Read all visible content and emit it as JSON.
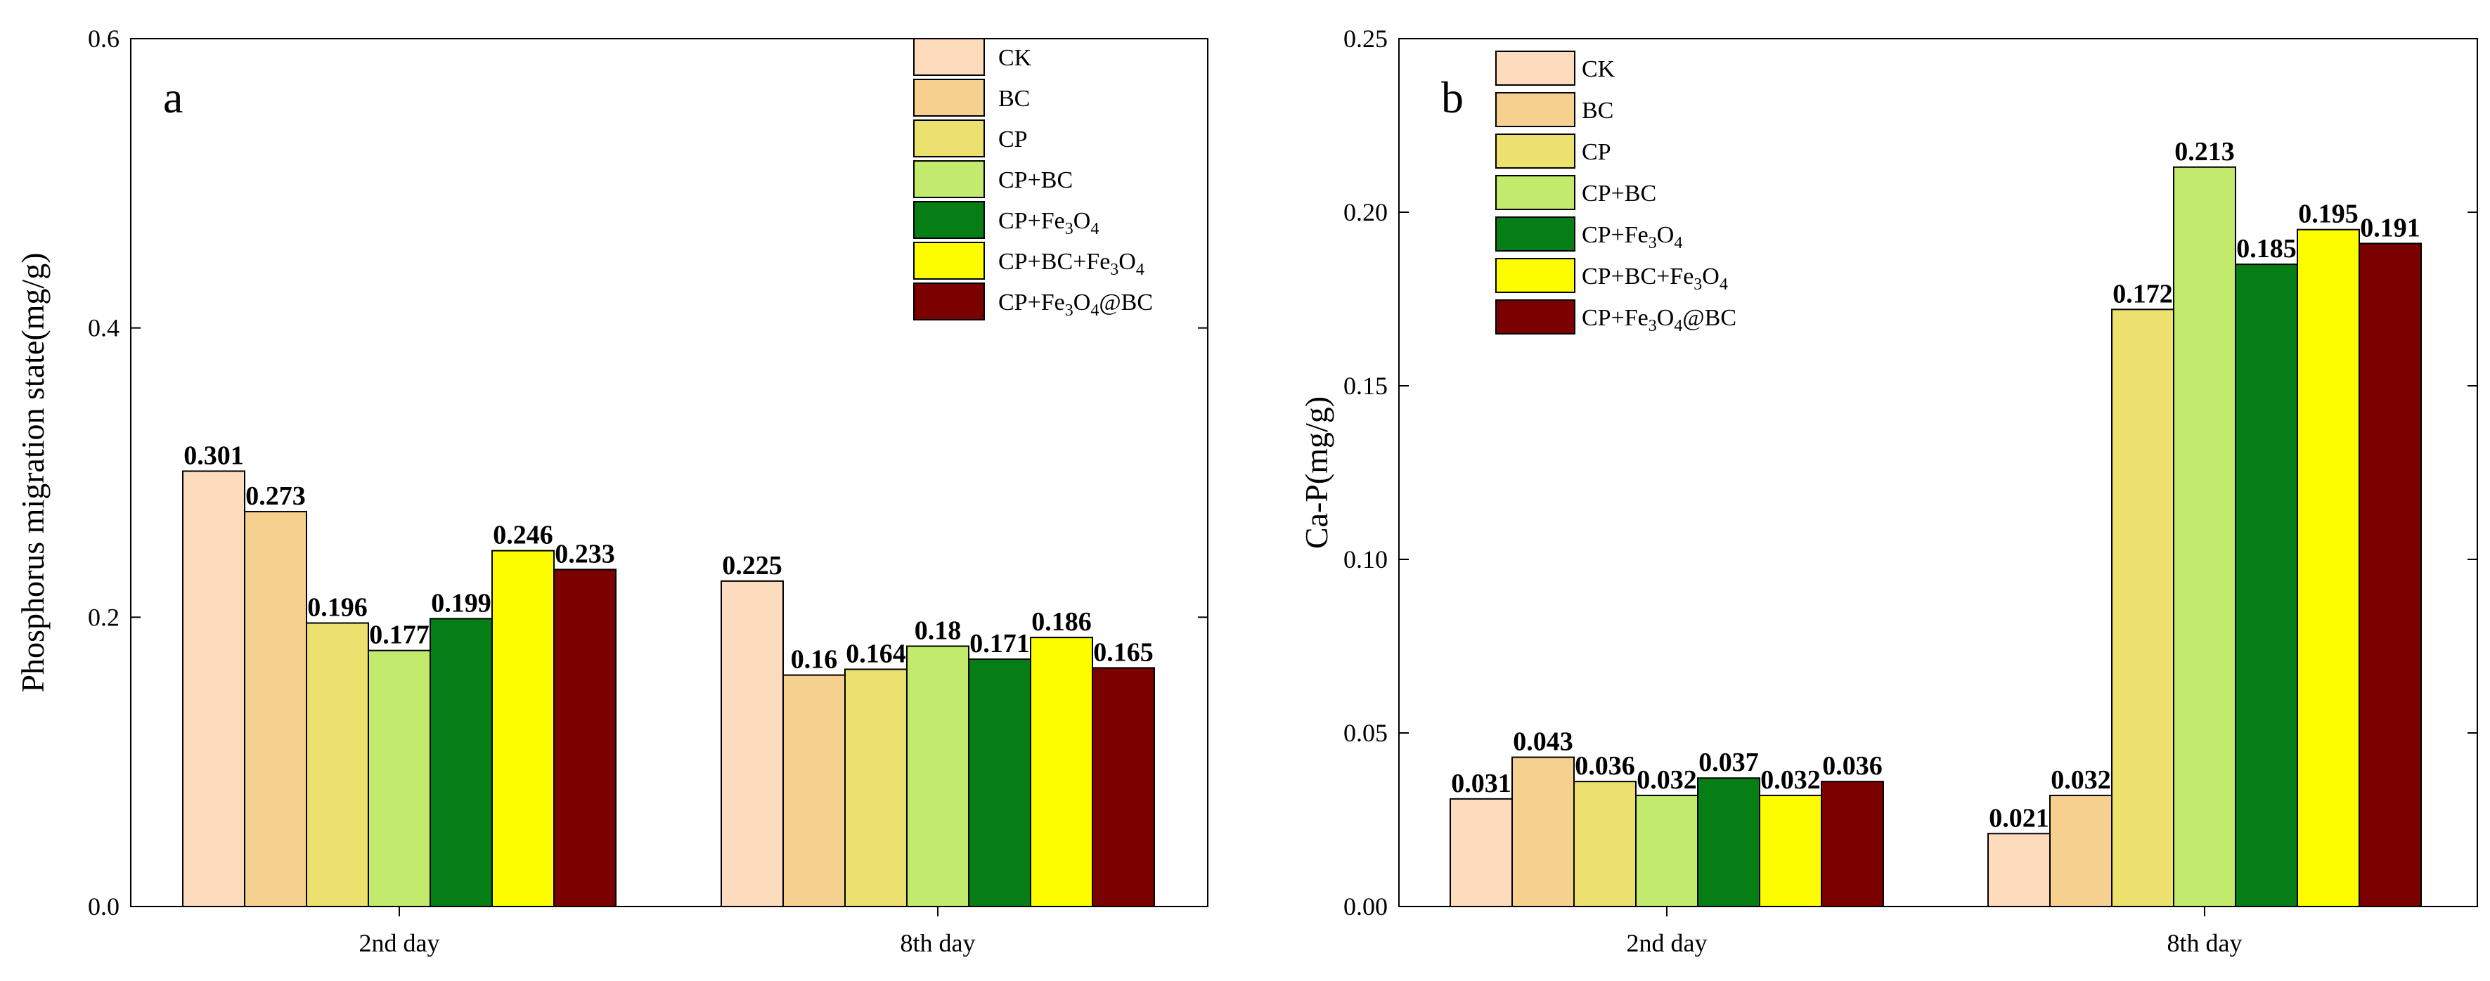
{
  "chart_data": [
    {
      "type": "bar",
      "panel": "a",
      "ylabel": "Phosphorus migration state(mg/g)",
      "xlabel": "",
      "ylim": [
        0,
        0.6
      ],
      "yticks": [
        "0.0",
        "0.2",
        "0.4",
        "0.6"
      ],
      "categories": [
        "2nd day",
        "8th day"
      ],
      "legend_position": "top-right",
      "series": [
        {
          "name": "CK",
          "values": [
            0.301,
            0.225
          ],
          "labels": [
            "0.301",
            "0.225"
          ]
        },
        {
          "name": "BC",
          "values": [
            0.273,
            0.16
          ],
          "labels": [
            "0.273",
            "0.16"
          ]
        },
        {
          "name": "CP",
          "values": [
            0.196,
            0.164
          ],
          "labels": [
            "0.196",
            "0.164"
          ]
        },
        {
          "name": "CP+BC",
          "values": [
            0.177,
            0.18
          ],
          "labels": [
            "0.177",
            "0.18"
          ]
        },
        {
          "name": "CP+Fe3O4",
          "values": [
            0.199,
            0.171
          ],
          "labels": [
            "0.199",
            "0.171"
          ]
        },
        {
          "name": "CP+BC+Fe3O4",
          "values": [
            0.246,
            0.186
          ],
          "labels": [
            "0.246",
            "0.186"
          ]
        },
        {
          "name": "CP+Fe3O4@BC",
          "values": [
            0.233,
            0.165
          ],
          "labels": [
            "0.233",
            "0.165"
          ]
        }
      ]
    },
    {
      "type": "bar",
      "panel": "b",
      "ylabel": "Ca-P(mg/g)",
      "xlabel": "",
      "ylim": [
        0,
        0.25
      ],
      "yticks": [
        "0.00",
        "0.05",
        "0.10",
        "0.15",
        "0.20",
        "0.25"
      ],
      "categories": [
        "2nd day",
        "8th day"
      ],
      "legend_position": "top-left",
      "series": [
        {
          "name": "CK",
          "values": [
            0.031,
            0.021
          ],
          "labels": [
            "0.031",
            "0.021"
          ]
        },
        {
          "name": "BC",
          "values": [
            0.043,
            0.032
          ],
          "labels": [
            "0.043",
            "0.032"
          ]
        },
        {
          "name": "CP",
          "values": [
            0.036,
            0.172
          ],
          "labels": [
            "0.036",
            "0.172"
          ]
        },
        {
          "name": "CP+BC",
          "values": [
            0.032,
            0.213
          ],
          "labels": [
            "0.032",
            "0.213"
          ]
        },
        {
          "name": "CP+Fe3O4",
          "values": [
            0.037,
            0.185
          ],
          "labels": [
            "0.037",
            "0.185"
          ]
        },
        {
          "name": "CP+BC+Fe3O4",
          "values": [
            0.032,
            0.195
          ],
          "labels": [
            "0.032",
            "0.195"
          ]
        },
        {
          "name": "CP+Fe3O4@BC",
          "values": [
            0.036,
            0.191
          ],
          "labels": [
            "0.036",
            "0.191"
          ]
        }
      ]
    }
  ],
  "legend": {
    "entries": [
      {
        "key": "CK",
        "text": "CK",
        "sub": "",
        "tail": ""
      },
      {
        "key": "BC",
        "text": "BC",
        "sub": "",
        "tail": ""
      },
      {
        "key": "CP",
        "text": "CP",
        "sub": "",
        "tail": ""
      },
      {
        "key": "CP+BC",
        "text": "CP+BC",
        "sub": "",
        "tail": ""
      },
      {
        "key": "CP+Fe3O4",
        "text": "CP+Fe",
        "sub": "3",
        "mid": "O",
        "sub2": "4",
        "tail": ""
      },
      {
        "key": "CP+BC+Fe3O4",
        "text": "CP+BC+Fe",
        "sub": "3",
        "mid": "O",
        "sub2": "4",
        "tail": ""
      },
      {
        "key": "CP+Fe3O4@BC",
        "text": "CP+Fe",
        "sub": "3",
        "mid": "O",
        "sub2": "4",
        "tail": "@BC"
      }
    ]
  },
  "colors": {
    "CK": "#fddcbd",
    "BC": "#f5d08f",
    "CP": "#ece06e",
    "CP+BC": "#c2ea6c",
    "CP+Fe3O4": "#077d16",
    "CP+BC+Fe3O4": "#fdfd00",
    "CP+Fe3O4@BC": "#7b0000"
  }
}
